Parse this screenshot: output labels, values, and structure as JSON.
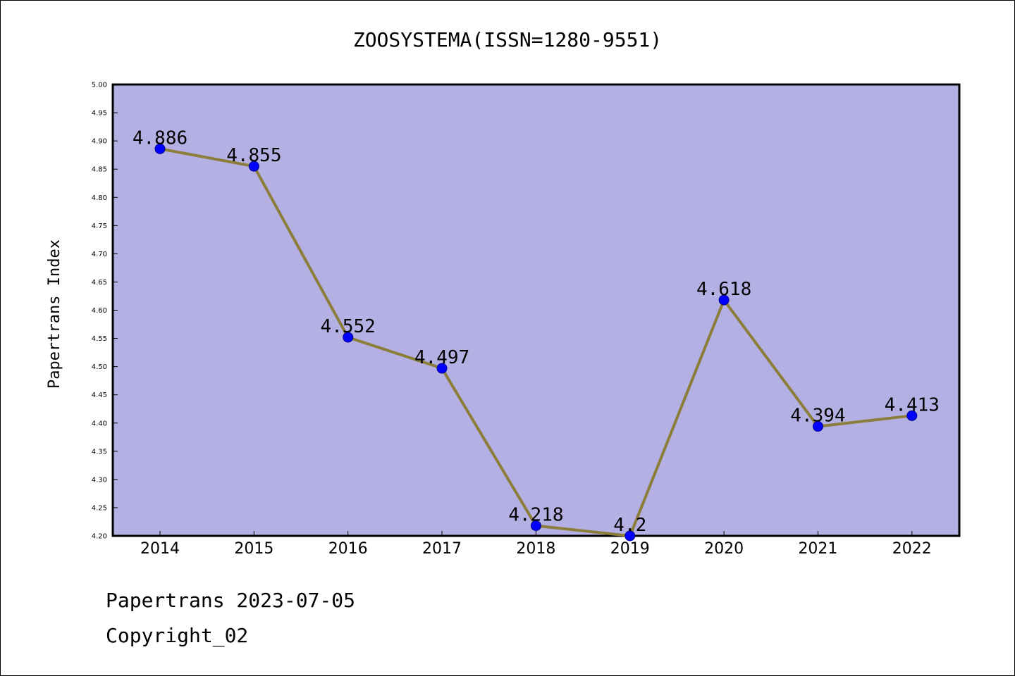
{
  "chart_data": {
    "type": "line",
    "title": "ZOOSYSTEMA(ISSN=1280-9551)",
    "xlabel": "",
    "ylabel": "Papertrans Index",
    "x": [
      "2014",
      "2015",
      "2016",
      "2017",
      "2018",
      "2019",
      "2020",
      "2021",
      "2022"
    ],
    "series": [
      {
        "values": [
          4.886,
          4.855,
          4.552,
          4.497,
          4.218,
          4.2,
          4.618,
          4.394,
          4.413
        ],
        "labels": [
          "4.886",
          "4.855",
          "4.552",
          "4.497",
          "4.218",
          "4.2",
          "4.618",
          "4.394",
          "4.413"
        ]
      }
    ],
    "ylim": [
      4.2,
      5.0
    ],
    "yticks": [
      "4.20",
      "4.25",
      "4.30",
      "4.35",
      "4.40",
      "4.45",
      "4.50",
      "4.55",
      "4.60",
      "4.65",
      "4.70",
      "4.75",
      "4.80",
      "4.85",
      "4.90",
      "4.95",
      "5.00"
    ],
    "grid": false,
    "colors": {
      "plot_background": "#b5b0e3",
      "line": "#8b7d3a",
      "marker": "#0000ff",
      "marker_edge": "#00008b"
    }
  },
  "footer": {
    "line1": "Papertrans 2023-07-05",
    "line2": "Copyright_02"
  }
}
